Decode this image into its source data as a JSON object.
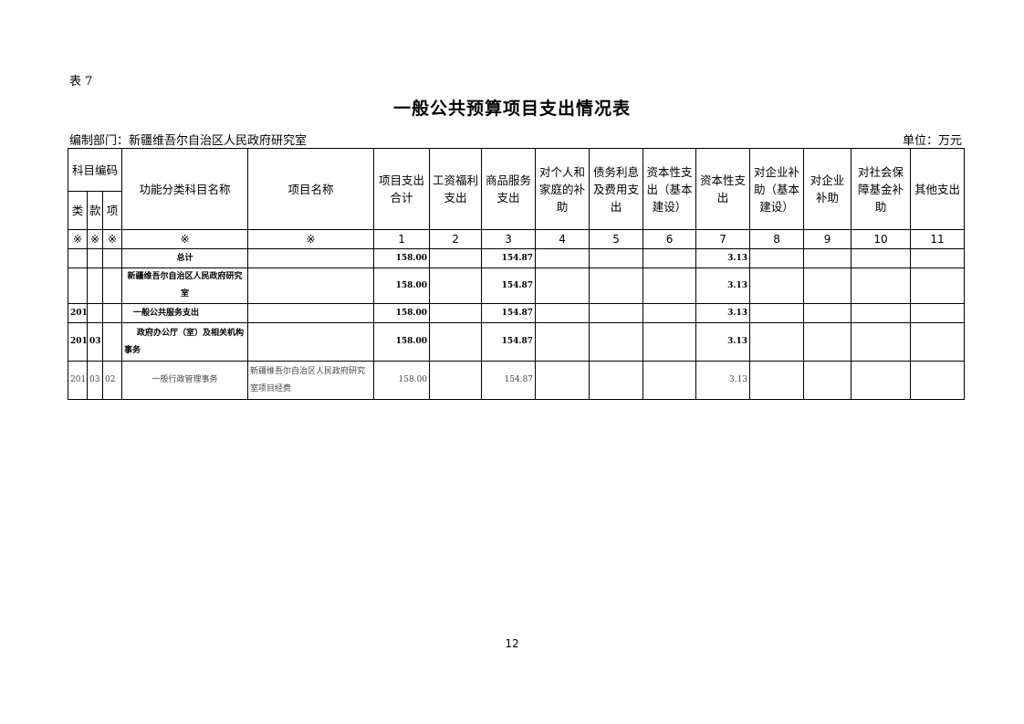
{
  "table_label": "表 7",
  "title": "一般公共预算项目支出情况表",
  "department": "编制部门：新疆维吾尔自治区人民政府研究室",
  "unit": "单位：万元",
  "header": {
    "code_group": "科目编码",
    "lei": "类",
    "kuan": "款",
    "xiang": "项",
    "func_name": "功能分类科目名称",
    "project_name": "项目名称",
    "cols": [
      "项目支出合计",
      "工资福利支出",
      "商品服务支出",
      "对个人和家庭的补助",
      "债务利息及费用支出",
      "资本性支出（基本建设）",
      "资本性支出",
      "对企业补助（基本建设）",
      "对企业补助",
      "对社会保障基金补助",
      "其他支出"
    ],
    "marks": [
      "※",
      "※",
      "※",
      "※",
      "※",
      "1",
      "2",
      "3",
      "4",
      "5",
      "6",
      "7",
      "8",
      "9",
      "10",
      "11"
    ]
  },
  "rows": [
    {
      "lei": "",
      "kuan": "",
      "xiang": "",
      "func": "总计",
      "project": "",
      "v": [
        "158.00",
        "",
        "154.87",
        "",
        "",
        "",
        "3.13",
        "",
        "",
        "",
        ""
      ]
    },
    {
      "lei": "",
      "kuan": "",
      "xiang": "",
      "func": "新疆维吾尔自治区人民政府研究室",
      "project": "",
      "v": [
        "158.00",
        "",
        "154.87",
        "",
        "",
        "",
        "3.13",
        "",
        "",
        "",
        ""
      ]
    },
    {
      "lei": "201",
      "kuan": "",
      "xiang": "",
      "func": "一般公共服务支出",
      "project": "",
      "v": [
        "158.00",
        "",
        "154.87",
        "",
        "",
        "",
        "3.13",
        "",
        "",
        "",
        ""
      ]
    },
    {
      "lei": "201",
      "kuan": "03",
      "xiang": "",
      "func": "政府办公厅（室）及相关机构事务",
      "project": "",
      "v": [
        "158.00",
        "",
        "154.87",
        "",
        "",
        "",
        "3.13",
        "",
        "",
        "",
        ""
      ]
    },
    {
      "lei": "201",
      "kuan": "03",
      "xiang": "02",
      "func": "一般行政管理事务",
      "project": "新疆维吾尔自治区人民政府研究室项目经费",
      "v": [
        "158.00",
        "",
        "154.87",
        "",
        "",
        "",
        "3.13",
        "",
        "",
        "",
        ""
      ]
    }
  ],
  "page_number": "12"
}
